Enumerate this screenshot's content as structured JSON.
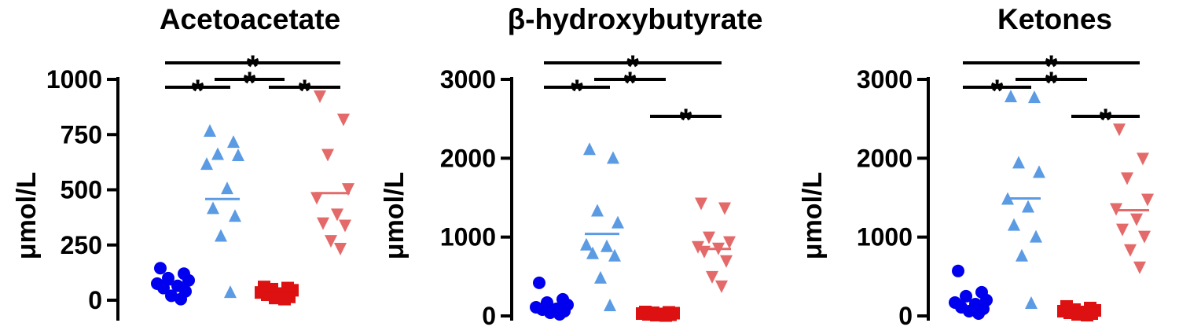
{
  "colors": {
    "circle_group": "#0000ee",
    "triangle_up_group": "#5b9be3",
    "square_group": "#dd1111",
    "triangle_down_group": "#e46a6a",
    "axis": "#000000"
  },
  "chart_data": [
    {
      "type": "scatter",
      "title": "Acetoacetate",
      "ylabel": "μmol/L",
      "ylim": [
        -90,
        1000
      ],
      "yticks": [
        0,
        250,
        500,
        750,
        1000
      ],
      "ytick_labels": [
        "0",
        "250",
        "500",
        "750",
        "1000"
      ],
      "groups": [
        {
          "marker": "circle",
          "color_key": "circle_group",
          "mean": 72,
          "values": [
            145,
            120,
            100,
            90,
            75,
            65,
            55,
            40,
            20,
            5
          ]
        },
        {
          "marker": "triangle-up",
          "color_key": "triangle_up_group",
          "mean": 458,
          "values": [
            765,
            715,
            660,
            655,
            615,
            505,
            415,
            380,
            290,
            35
          ]
        },
        {
          "marker": "square",
          "color_key": "square_group",
          "mean": 30,
          "values": [
            60,
            55,
            50,
            45,
            35,
            30,
            25,
            15,
            10,
            5
          ]
        },
        {
          "marker": "triangle-down",
          "color_key": "triangle_down_group",
          "mean": 485,
          "values": [
            925,
            820,
            660,
            505,
            465,
            390,
            350,
            340,
            270,
            235
          ]
        }
      ],
      "significance": [
        {
          "from": 0,
          "to": 1,
          "level": 0,
          "star": "*"
        },
        {
          "from": 1,
          "to": 2,
          "level": 1,
          "star": "*"
        },
        {
          "from": 2,
          "to": 3,
          "level": 0,
          "star": "*"
        },
        {
          "from": 0,
          "to": 3,
          "level": 2,
          "star": "*"
        }
      ]
    },
    {
      "type": "scatter",
      "title": "β-hydroxybutyrate",
      "ylabel": "μmol/L",
      "ylim": [
        -60,
        3000
      ],
      "yticks": [
        0,
        1000,
        2000,
        3000
      ],
      "ytick_labels": [
        "0",
        "1000",
        "2000",
        "3000"
      ],
      "groups": [
        {
          "marker": "circle",
          "color_key": "circle_group",
          "mean": 125,
          "values": [
            420,
            210,
            170,
            140,
            110,
            90,
            80,
            60,
            40,
            20
          ]
        },
        {
          "marker": "triangle-up",
          "color_key": "triangle_up_group",
          "mean": 1040,
          "values": [
            2110,
            2000,
            1330,
            1180,
            900,
            880,
            790,
            760,
            480,
            130
          ]
        },
        {
          "marker": "square",
          "color_key": "square_group",
          "mean": 25,
          "values": [
            50,
            45,
            40,
            35,
            30,
            25,
            20,
            15,
            10,
            5
          ]
        },
        {
          "marker": "triangle-down",
          "color_key": "triangle_down_group",
          "mean": 850,
          "values": [
            1430,
            1370,
            1000,
            940,
            880,
            860,
            820,
            700,
            500,
            380
          ]
        }
      ],
      "significance": [
        {
          "from": 0,
          "to": 1,
          "level": 0,
          "star": "*"
        },
        {
          "from": 1,
          "to": 2,
          "level": 1,
          "star": "*"
        },
        {
          "from": 0,
          "to": 3,
          "level": 2,
          "star": "*"
        },
        {
          "from": 2,
          "to": 3,
          "level": -1,
          "star": "*"
        }
      ]
    },
    {
      "type": "scatter",
      "title": "Ketones",
      "ylabel": "μmol/L",
      "ylim": [
        -60,
        3000
      ],
      "yticks": [
        0,
        1000,
        2000,
        3000
      ],
      "ytick_labels": [
        "0",
        "1000",
        "2000",
        "3000"
      ],
      "groups": [
        {
          "marker": "circle",
          "color_key": "circle_group",
          "mean": 190,
          "values": [
            570,
            300,
            250,
            200,
            170,
            150,
            110,
            90,
            60,
            30
          ]
        },
        {
          "marker": "triangle-up",
          "color_key": "triangle_up_group",
          "mean": 1490,
          "values": [
            2780,
            2770,
            1940,
            1820,
            1480,
            1380,
            1150,
            1000,
            760,
            160
          ]
        },
        {
          "marker": "square",
          "color_key": "square_group",
          "mean": 60,
          "values": [
            120,
            100,
            80,
            70,
            60,
            50,
            40,
            30,
            20,
            10
          ]
        },
        {
          "marker": "triangle-down",
          "color_key": "triangle_down_group",
          "mean": 1340,
          "values": [
            2370,
            2000,
            1750,
            1480,
            1360,
            1230,
            1100,
            1010,
            840,
            620
          ]
        }
      ],
      "significance": [
        {
          "from": 0,
          "to": 1,
          "level": 0,
          "star": "*"
        },
        {
          "from": 1,
          "to": 2,
          "level": 1,
          "star": "*"
        },
        {
          "from": 0,
          "to": 3,
          "level": 2,
          "star": "*"
        },
        {
          "from": 2,
          "to": 3,
          "level": -1,
          "star": "*"
        }
      ]
    }
  ]
}
